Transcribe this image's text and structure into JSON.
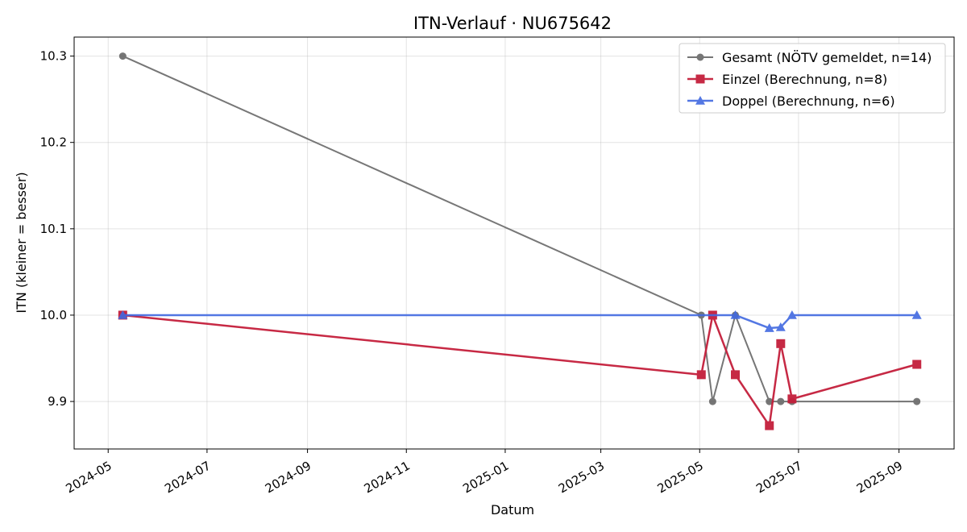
{
  "chart_data": {
    "type": "line",
    "title": "ITN-Verlauf · NU675642",
    "xlabel": "Datum",
    "ylabel": "ITN  (kleiner = besser)",
    "x_type": "date",
    "xlim": [
      "2024-04-10",
      "2025-10-05"
    ],
    "ylim": [
      9.845,
      10.322
    ],
    "x_ticks": [
      "2024-05",
      "2024-07",
      "2024-09",
      "2024-11",
      "2025-01",
      "2025-03",
      "2025-05",
      "2025-07",
      "2025-09"
    ],
    "y_ticks": [
      9.9,
      10.0,
      10.1,
      10.2,
      10.3
    ],
    "grid": true,
    "legend_position": "top-right",
    "series": [
      {
        "name": "Gesamt (NÖTV gemeldet, n=14)",
        "color": "#555555",
        "marker": "circle",
        "x": [
          "2024-05-10",
          "2025-05-02",
          "2025-05-09",
          "2025-05-23",
          "2025-06-13",
          "2025-06-20",
          "2025-06-27",
          "2025-09-12"
        ],
        "y": [
          10.3,
          10.0,
          9.9,
          10.0,
          9.9,
          9.9,
          9.9,
          9.9
        ]
      },
      {
        "name": "Einzel (Berechnung, n=8)",
        "color": "#c41e3a",
        "marker": "square",
        "x": [
          "2024-05-10",
          "2025-05-02",
          "2025-05-09",
          "2025-05-23",
          "2025-06-13",
          "2025-06-20",
          "2025-06-27",
          "2025-09-12"
        ],
        "y": [
          10.0,
          9.931,
          10.0,
          9.931,
          9.872,
          9.967,
          9.903,
          9.943
        ]
      },
      {
        "name": "Doppel (Berechnung, n=6)",
        "color": "#4169e1",
        "marker": "triangle",
        "x": [
          "2024-05-10",
          "2025-05-23",
          "2025-06-13",
          "2025-06-20",
          "2025-06-27",
          "2025-09-12"
        ],
        "y": [
          10.0,
          10.0,
          9.985,
          9.986,
          10.0,
          10.0
        ]
      }
    ]
  }
}
